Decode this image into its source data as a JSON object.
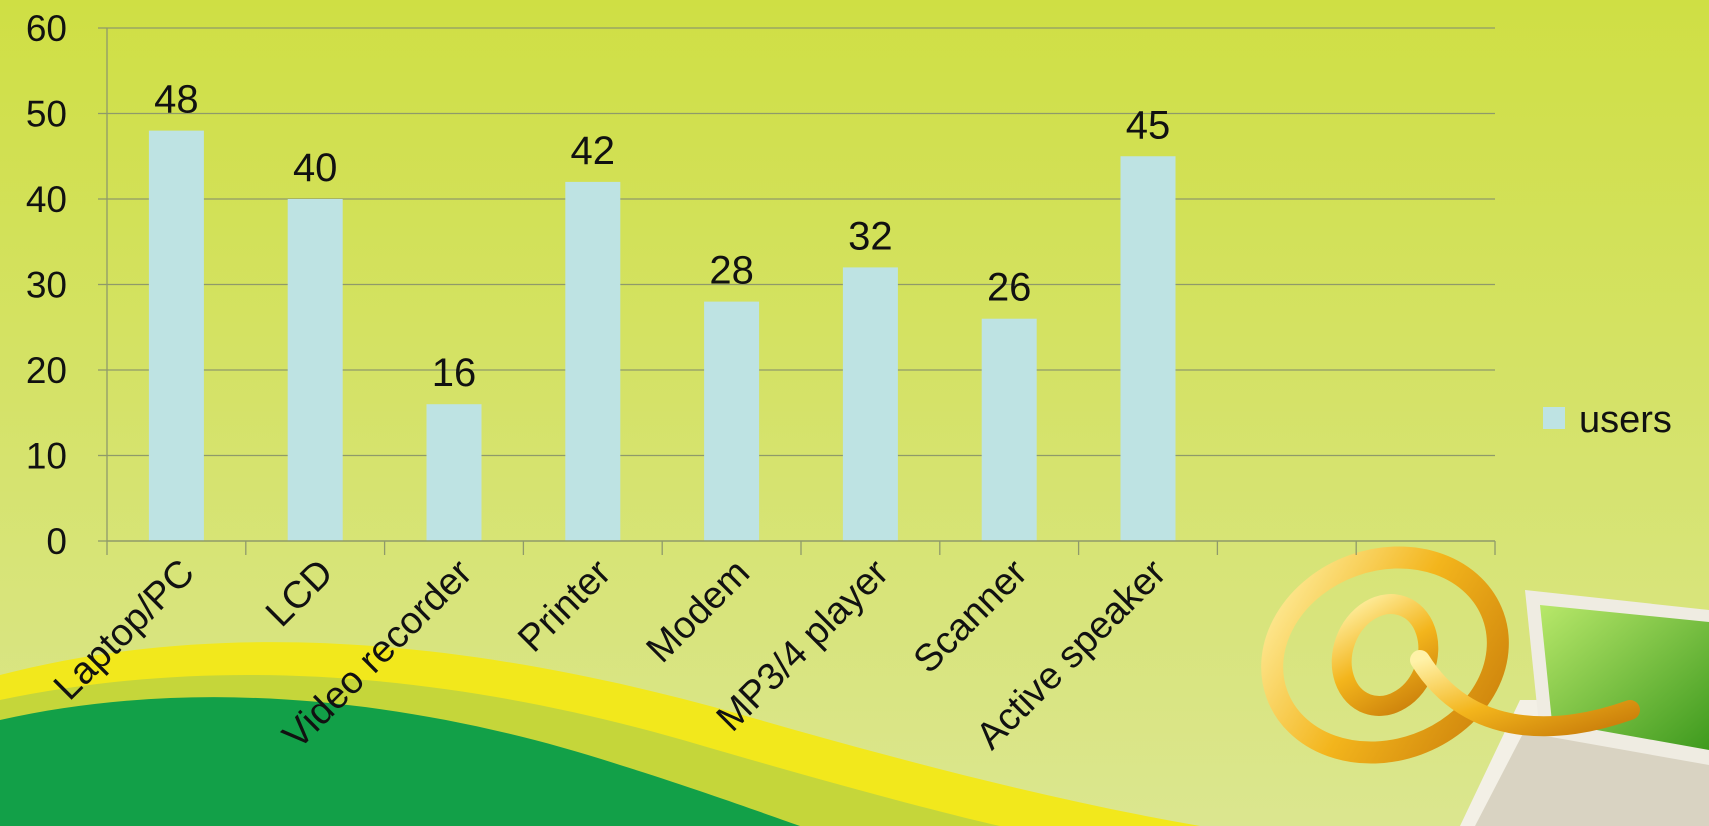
{
  "chart_data": {
    "type": "bar",
    "categories": [
      "Laptop/PC",
      "LCD",
      "Video recorder",
      "Printer",
      "Modem",
      "MP3/4 player",
      "Scanner",
      "Active speaker",
      "",
      ""
    ],
    "series": [
      {
        "name": "users",
        "values": [
          48,
          40,
          16,
          42,
          28,
          32,
          26,
          45,
          null,
          null
        ]
      }
    ],
    "ylim": [
      0,
      60
    ],
    "yticks": [
      0,
      10,
      20,
      30,
      40,
      50,
      60
    ],
    "grid": true,
    "data_labels": true,
    "legend_position": "right",
    "colors": {
      "bar": "#bee3e3",
      "background": "#d2e04c",
      "grid": "#8f9a6a",
      "text": "#111111"
    }
  },
  "decorations": {
    "wave_colors": [
      "#f2e81c",
      "#c5d63a",
      "#12a048"
    ],
    "at_sign_icon": "at-sign-icon",
    "laptop_icon": "laptop-icon"
  }
}
